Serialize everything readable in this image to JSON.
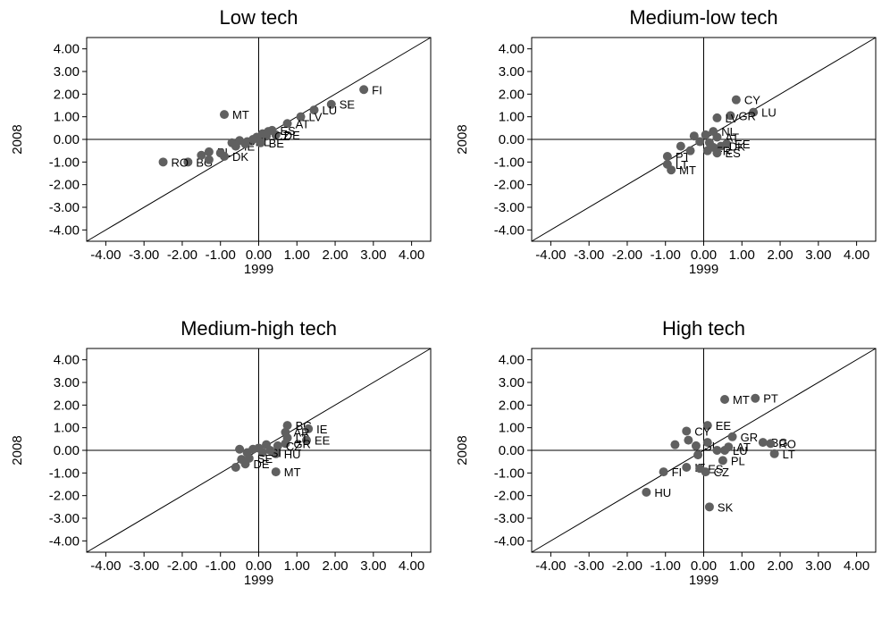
{
  "chart_data": [
    {
      "type": "scatter",
      "title": "Low tech",
      "xlabel": "1999",
      "ylabel": "2008",
      "xlim": [
        -4.5,
        4.5
      ],
      "ylim": [
        -4.5,
        4.5
      ],
      "ticks": [
        "-4.00",
        "-3.00",
        "-2.00",
        "-1.00",
        "0.00",
        "1.00",
        "2.00",
        "3.00",
        "4.00"
      ],
      "reference_line": "45-degree",
      "points": [
        {
          "label": "FI",
          "x": 2.75,
          "y": 2.2
        },
        {
          "label": "SE",
          "x": 1.9,
          "y": 1.55
        },
        {
          "label": "LU",
          "x": 1.45,
          "y": 1.3
        },
        {
          "label": "MT",
          "x": -0.9,
          "y": 1.1
        },
        {
          "label": "LV",
          "x": 1.1,
          "y": 1.0
        },
        {
          "label": "AT",
          "x": 0.75,
          "y": 0.7
        },
        {
          "label": "ES",
          "x": 0.35,
          "y": 0.4
        },
        {
          "label": "DE",
          "x": 0.45,
          "y": 0.2
        },
        {
          "label": "CZ",
          "x": 0.2,
          "y": 0.15
        },
        {
          "label": "SK",
          "x": -0.5,
          "y": -0.05
        },
        {
          "label": "NL",
          "x": -0.3,
          "y": -0.1
        },
        {
          "label": "BE",
          "x": 0.05,
          "y": -0.15
        },
        {
          "label": "IE",
          "x": -0.6,
          "y": -0.3
        },
        {
          "label": "PL",
          "x": -1.3,
          "y": -0.55
        },
        {
          "label": "DK",
          "x": -0.9,
          "y": -0.75
        },
        {
          "label": "BG",
          "x": -1.85,
          "y": -1.0
        },
        {
          "label": "RO",
          "x": -2.5,
          "y": -1.0
        },
        {
          "label": "",
          "x": 0.25,
          "y": 0.35
        },
        {
          "label": "",
          "x": 0.1,
          "y": 0.25
        },
        {
          "label": "",
          "x": -0.05,
          "y": 0.1
        },
        {
          "label": "",
          "x": -0.15,
          "y": 0.0
        },
        {
          "label": "",
          "x": -0.35,
          "y": -0.2
        },
        {
          "label": "",
          "x": -0.7,
          "y": -0.15
        },
        {
          "label": "",
          "x": -1.0,
          "y": -0.6
        },
        {
          "label": "",
          "x": -1.5,
          "y": -0.7
        },
        {
          "label": "",
          "x": -1.3,
          "y": -0.9
        }
      ]
    },
    {
      "type": "scatter",
      "title": "Medium-low tech",
      "xlabel": "1999",
      "ylabel": "2008",
      "xlim": [
        -4.5,
        4.5
      ],
      "ylim": [
        -4.5,
        4.5
      ],
      "ticks": [
        "-4.00",
        "-3.00",
        "-2.00",
        "-1.00",
        "0.00",
        "1.00",
        "2.00",
        "3.00",
        "4.00"
      ],
      "reference_line": "45-degree",
      "points": [
        {
          "label": "CY",
          "x": 0.85,
          "y": 1.75
        },
        {
          "label": "LU",
          "x": 1.3,
          "y": 1.2
        },
        {
          "label": "GR",
          "x": 0.7,
          "y": 1.05
        },
        {
          "label": "LV",
          "x": 0.35,
          "y": 0.95
        },
        {
          "label": "NL",
          "x": 0.25,
          "y": 0.35
        },
        {
          "label": "AT",
          "x": 0.35,
          "y": 0.1
        },
        {
          "label": "EE",
          "x": 0.6,
          "y": -0.2
        },
        {
          "label": "DK",
          "x": 0.45,
          "y": -0.3
        },
        {
          "label": "FR",
          "x": 0.1,
          "y": -0.5
        },
        {
          "label": "ES",
          "x": 0.35,
          "y": -0.6
        },
        {
          "label": "PT",
          "x": -0.95,
          "y": -0.75
        },
        {
          "label": "LT",
          "x": -0.95,
          "y": -1.1
        },
        {
          "label": "MT",
          "x": -0.85,
          "y": -1.35
        },
        {
          "label": "",
          "x": -0.6,
          "y": -0.3
        },
        {
          "label": "",
          "x": -0.25,
          "y": 0.15
        },
        {
          "label": "",
          "x": 0.05,
          "y": 0.2
        },
        {
          "label": "",
          "x": -0.1,
          "y": -0.1
        },
        {
          "label": "",
          "x": 0.15,
          "y": -0.15
        },
        {
          "label": "",
          "x": -0.35,
          "y": -0.5
        },
        {
          "label": "",
          "x": 0.25,
          "y": -0.35
        }
      ]
    },
    {
      "type": "scatter",
      "title": "Medium-high tech",
      "xlabel": "1999",
      "ylabel": "2008",
      "xlim": [
        -4.5,
        4.5
      ],
      "ylim": [
        -4.5,
        4.5
      ],
      "ticks": [
        "-4.00",
        "-3.00",
        "-2.00",
        "-1.00",
        "0.00",
        "1.00",
        "2.00",
        "3.00",
        "4.00"
      ],
      "reference_line": "45-degree",
      "points": [
        {
          "label": "BG",
          "x": 0.75,
          "y": 1.1
        },
        {
          "label": "IE",
          "x": 1.3,
          "y": 0.95
        },
        {
          "label": "AR",
          "x": 0.7,
          "y": 0.8
        },
        {
          "label": "EE",
          "x": 1.25,
          "y": 0.45
        },
        {
          "label": "LT",
          "x": 0.75,
          "y": 0.55
        },
        {
          "label": "GR",
          "x": 0.7,
          "y": 0.3
        },
        {
          "label": "CZ",
          "x": 0.5,
          "y": 0.2
        },
        {
          "label": "HU",
          "x": 0.45,
          "y": -0.15
        },
        {
          "label": "SI",
          "x": 0.1,
          "y": -0.1
        },
        {
          "label": "SE",
          "x": -0.25,
          "y": -0.35
        },
        {
          "label": "DE",
          "x": -0.35,
          "y": -0.6
        },
        {
          "label": "MT",
          "x": 0.45,
          "y": -0.95
        },
        {
          "label": "",
          "x": -0.6,
          "y": -0.75
        },
        {
          "label": "",
          "x": -0.45,
          "y": -0.4
        },
        {
          "label": "",
          "x": -0.3,
          "y": -0.1
        },
        {
          "label": "",
          "x": -0.15,
          "y": 0.05
        },
        {
          "label": "",
          "x": 0.0,
          "y": 0.1
        },
        {
          "label": "",
          "x": 0.2,
          "y": 0.25
        },
        {
          "label": "",
          "x": -0.5,
          "y": 0.05
        },
        {
          "label": "",
          "x": 0.3,
          "y": 0.0
        }
      ]
    },
    {
      "type": "scatter",
      "title": "High tech",
      "xlabel": "1999",
      "ylabel": "2008",
      "xlim": [
        -4.5,
        4.5
      ],
      "ylim": [
        -4.5,
        4.5
      ],
      "ticks": [
        "-4.00",
        "-3.00",
        "-2.00",
        "-1.00",
        "0.00",
        "1.00",
        "2.00",
        "3.00",
        "4.00"
      ],
      "reference_line": "45-degree",
      "points": [
        {
          "label": "PT",
          "x": 1.35,
          "y": 2.3
        },
        {
          "label": "MT",
          "x": 0.55,
          "y": 2.25
        },
        {
          "label": "EE",
          "x": 0.1,
          "y": 1.1
        },
        {
          "label": "CY",
          "x": -0.45,
          "y": 0.85
        },
        {
          "label": "GR",
          "x": 0.75,
          "y": 0.6
        },
        {
          "label": "BG",
          "x": 1.55,
          "y": 0.35
        },
        {
          "label": "RO",
          "x": 1.75,
          "y": 0.3
        },
        {
          "label": "LT",
          "x": 1.85,
          "y": -0.15
        },
        {
          "label": "AT",
          "x": 0.65,
          "y": 0.15
        },
        {
          "label": "LU",
          "x": 0.55,
          "y": 0.0
        },
        {
          "label": "SI",
          "x": -0.2,
          "y": 0.2
        },
        {
          "label": "PL",
          "x": 0.5,
          "y": -0.45
        },
        {
          "label": "IE",
          "x": -0.45,
          "y": -0.75
        },
        {
          "label": "ES",
          "x": -0.1,
          "y": -0.8
        },
        {
          "label": "CZ",
          "x": 0.05,
          "y": -0.95
        },
        {
          "label": "FI",
          "x": -1.05,
          "y": -0.95
        },
        {
          "label": "HU",
          "x": -1.5,
          "y": -1.85
        },
        {
          "label": "SK",
          "x": 0.15,
          "y": -2.5
        },
        {
          "label": "",
          "x": -0.75,
          "y": 0.25
        },
        {
          "label": "",
          "x": -0.4,
          "y": 0.45
        },
        {
          "label": "",
          "x": 0.1,
          "y": 0.35
        },
        {
          "label": "",
          "x": 0.35,
          "y": 0.0
        },
        {
          "label": "",
          "x": -0.15,
          "y": -0.2
        }
      ]
    }
  ]
}
